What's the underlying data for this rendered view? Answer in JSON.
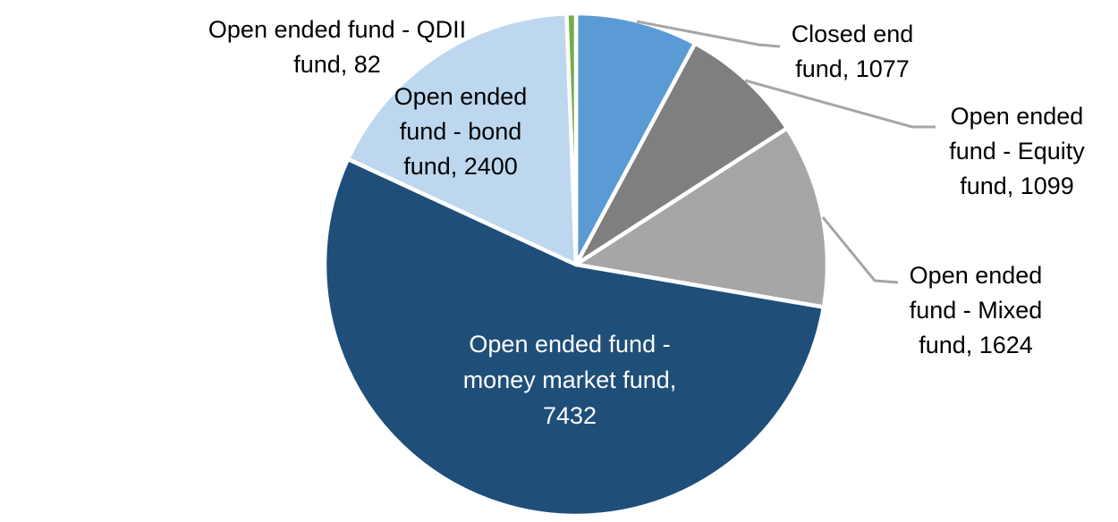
{
  "chart_data": {
    "type": "pie",
    "title": "",
    "start_angle_deg": 0,
    "direction": "clockwise",
    "legend": "none",
    "slice_border_color": "#FFFFFF",
    "leader_line_color": "#A6A6A6",
    "label_color": "#000000",
    "inner_label_color": "#FFFFFF",
    "slices": [
      {
        "id": "closed-end-fund",
        "name": "Closed end fund",
        "value": 1077,
        "color": "#5B9BD5",
        "label": "Closed end\nfund, 1077",
        "label_placement": "outside-leader"
      },
      {
        "id": "equity-fund",
        "name": "Open ended fund - Equity fund",
        "value": 1099,
        "color": "#7F7F7F",
        "label": "Open ended\nfund - Equity\nfund, 1099",
        "label_placement": "outside-leader"
      },
      {
        "id": "mixed-fund",
        "name": "Open ended fund - Mixed fund",
        "value": 1624,
        "color": "#A6A6A6",
        "label": "Open ended\nfund - Mixed\nfund, 1624",
        "label_placement": "outside-leader"
      },
      {
        "id": "money-market-fund",
        "name": "Open ended fund - money market fund",
        "value": 7432,
        "color": "#1F4E79",
        "label": "Open ended fund -\nmoney market fund,\n7432",
        "label_placement": "inside"
      },
      {
        "id": "bond-fund",
        "name": "Open ended fund - bond fund",
        "value": 2400,
        "color": "#BDD7EE",
        "label": "Open ended\nfund - bond\nfund, 2400",
        "label_placement": "outside"
      },
      {
        "id": "qdii-fund",
        "name": "Open ended fund - QDII fund",
        "value": 82,
        "color": "#70AD47",
        "label": "Open ended fund - QDII\nfund, 82",
        "label_placement": "outside"
      }
    ]
  }
}
